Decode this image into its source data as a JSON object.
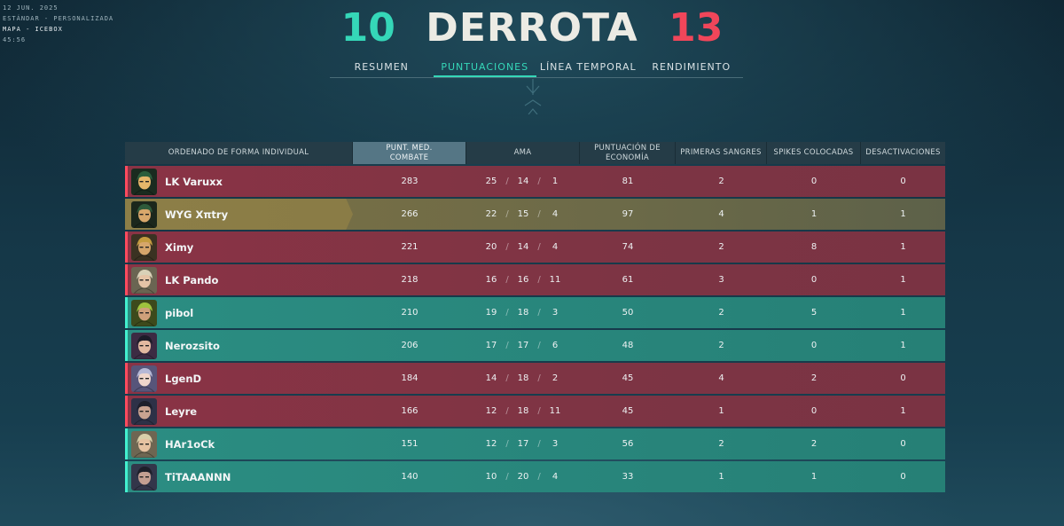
{
  "match_meta": {
    "date": "12 JUN. 2025",
    "mode": "ESTÁNDAR - PERSONALIZADA",
    "map": "MAPA - ICEBOX",
    "duration": "45:56"
  },
  "score": {
    "ally": "10",
    "result": "DERROTA",
    "enemy": "13",
    "colors": {
      "ally": "#35d7b8",
      "enemy": "#f0465a",
      "result": "#ecebe4"
    }
  },
  "tabs": [
    {
      "label": "RESUMEN",
      "active": false
    },
    {
      "label": "PUNTUACIONES",
      "active": true
    },
    {
      "label": "LÍNEA TEMPORAL",
      "active": false
    },
    {
      "label": "RENDIMIENTO",
      "active": false
    }
  ],
  "table": {
    "headers": {
      "name": "ORDENADO DE FORMA INDIVIDUAL",
      "acs_l1": "PUNT. MED.",
      "acs_l2": "COMBATE",
      "kda": "AMA",
      "eco_l1": "PUNTUACIÓN DE",
      "eco_l2": "ECONOMÍA",
      "first_bloods": "PRIMERAS SANGRES",
      "plants": "SPIKES COLOCADAS",
      "defuses": "DESACTIVACIONES"
    },
    "kda_separator": "/",
    "rows": [
      {
        "team": "enemy",
        "self": false,
        "name": "LK Varuxx",
        "avatar": "agent-portrait-icon",
        "acs": "283",
        "k": "25",
        "d": "14",
        "a": "1",
        "eco": "81",
        "fb": "2",
        "plants": "0",
        "defuses": "0"
      },
      {
        "team": "ally",
        "self": true,
        "name": "WYG Xπtry",
        "avatar": "agent-portrait-icon",
        "acs": "266",
        "k": "22",
        "d": "15",
        "a": "4",
        "eco": "97",
        "fb": "4",
        "plants": "1",
        "defuses": "1"
      },
      {
        "team": "enemy",
        "self": false,
        "name": "Ximy",
        "avatar": "agent-portrait-icon",
        "acs": "221",
        "k": "20",
        "d": "14",
        "a": "4",
        "eco": "74",
        "fb": "2",
        "plants": "8",
        "defuses": "1"
      },
      {
        "team": "enemy",
        "self": false,
        "name": "LK Pando",
        "avatar": "agent-portrait-icon",
        "acs": "218",
        "k": "16",
        "d": "16",
        "a": "11",
        "eco": "61",
        "fb": "3",
        "plants": "0",
        "defuses": "1"
      },
      {
        "team": "ally",
        "self": false,
        "name": "pibol",
        "avatar": "agent-portrait-icon",
        "acs": "210",
        "k": "19",
        "d": "18",
        "a": "3",
        "eco": "50",
        "fb": "2",
        "plants": "5",
        "defuses": "1"
      },
      {
        "team": "ally",
        "self": false,
        "name": "Nerozsito",
        "avatar": "agent-portrait-icon",
        "acs": "206",
        "k": "17",
        "d": "17",
        "a": "6",
        "eco": "48",
        "fb": "2",
        "plants": "0",
        "defuses": "1"
      },
      {
        "team": "enemy",
        "self": false,
        "name": "LgenD",
        "avatar": "agent-portrait-icon",
        "acs": "184",
        "k": "14",
        "d": "18",
        "a": "2",
        "eco": "45",
        "fb": "4",
        "plants": "2",
        "defuses": "0"
      },
      {
        "team": "enemy",
        "self": false,
        "name": "Leyre",
        "avatar": "agent-portrait-icon",
        "acs": "166",
        "k": "12",
        "d": "18",
        "a": "11",
        "eco": "45",
        "fb": "1",
        "plants": "0",
        "defuses": "1"
      },
      {
        "team": "ally",
        "self": false,
        "name": "HAr1oCk",
        "avatar": "agent-portrait-icon",
        "acs": "151",
        "k": "12",
        "d": "17",
        "a": "3",
        "eco": "56",
        "fb": "2",
        "plants": "2",
        "defuses": "0"
      },
      {
        "team": "ally",
        "self": false,
        "name": "TiTAAANNN",
        "avatar": "agent-portrait-icon",
        "acs": "140",
        "k": "10",
        "d": "20",
        "a": "4",
        "eco": "33",
        "fb": "1",
        "plants": "1",
        "defuses": "0"
      }
    ]
  }
}
